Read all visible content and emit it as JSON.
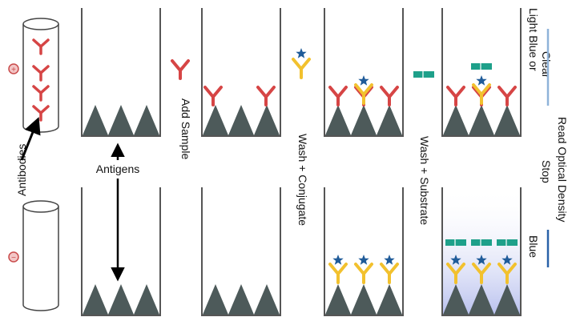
{
  "labels": {
    "antibodies": "Antibodies",
    "antigens": "Antigens",
    "add_sample": "Add Sample",
    "wash_conjugate": "Wash + Conjugate",
    "wash_substrate": "Wash + Substrate",
    "stop": "Stop",
    "read_od": "Read Optical Density",
    "light_blue_or": "Light Blue or",
    "clear": "Clear",
    "blue": "Blue"
  },
  "rows": {
    "top_sign": "+",
    "bottom_sign": "−"
  },
  "colors": {
    "antigen": "#4d5a5a",
    "capture_antibody": "#d64545",
    "conjugate": "#f2c12e",
    "enzyme_star": "#1f5b99",
    "substrate": "#1ea08a",
    "well_line": "#555555",
    "blue_result": "#2a62a8",
    "light_blue_result": "#8fb3d9"
  }
}
